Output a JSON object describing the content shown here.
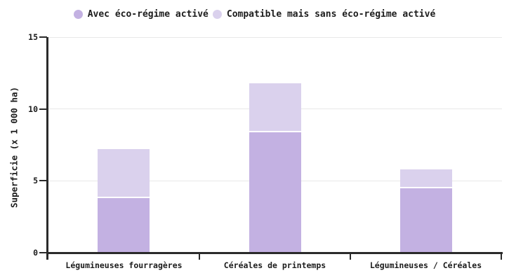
{
  "chart_data": {
    "type": "bar",
    "stacked": true,
    "title": "",
    "categories": [
      "Légumineuses fourragères",
      "Céréales de printemps",
      "Légumineuses / Céréales"
    ],
    "series": [
      {
        "name": "Avec éco-régime activé",
        "color": "#c3b1e2",
        "values": [
          3.8,
          8.4,
          4.5
        ]
      },
      {
        "name": "Compatible mais sans éco-régime activé",
        "color": "#dad1ed",
        "values": [
          3.4,
          3.4,
          1.3
        ]
      }
    ],
    "xlabel": "",
    "ylabel": "Superficie (x 1 000 ha)",
    "ylim": [
      0,
      15
    ],
    "yticks": [
      0,
      5,
      10,
      15
    ],
    "ytick_labels": [
      "0",
      "5",
      "10",
      "15"
    ],
    "grid": true,
    "legend_position": "top"
  },
  "colors": {
    "axis": "#2a2a2a",
    "grid": "#e8e8e8",
    "text": "#1c1c1c",
    "background": "#ffffff",
    "segment_separator": "#ffffff"
  }
}
